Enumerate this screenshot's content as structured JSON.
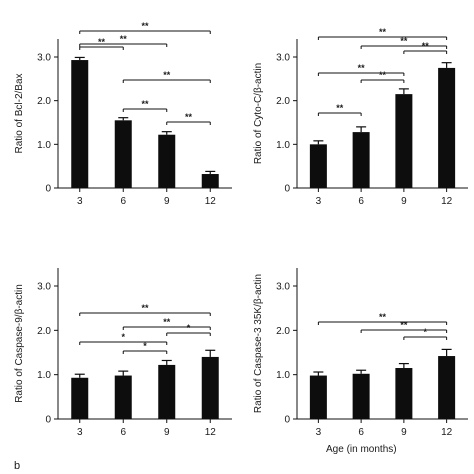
{
  "figure": {
    "panel_label": "b",
    "xlabel": "Age (in months)"
  },
  "chart_data": [
    {
      "type": "bar",
      "categories": [
        "3",
        "6",
        "9",
        "12"
      ],
      "values": [
        2.93,
        1.55,
        1.22,
        0.32
      ],
      "errors": [
        0.06,
        0.06,
        0.07,
        0.06
      ],
      "ylabel": "Ratio of Bcl-2/Bax",
      "ylim": [
        0,
        3.0
      ],
      "yticks": [
        "0",
        "1.0",
        "2.0",
        "3.0"
      ],
      "significance": [
        {
          "from": 0,
          "to": 3,
          "label": "**"
        },
        {
          "from": 0,
          "to": 2,
          "label": "**"
        },
        {
          "from": 0,
          "to": 1,
          "label": "**"
        },
        {
          "from": 1,
          "to": 3,
          "label": "**"
        },
        {
          "from": 1,
          "to": 2,
          "label": "**"
        },
        {
          "from": 2,
          "to": 3,
          "label": "**"
        }
      ]
    },
    {
      "type": "bar",
      "categories": [
        "3",
        "6",
        "9",
        "12"
      ],
      "values": [
        1.0,
        1.28,
        2.15,
        2.75
      ],
      "errors": [
        0.08,
        0.12,
        0.12,
        0.12
      ],
      "ylabel": "Ratio of Cyto-C/β-actin",
      "ylim": [
        0,
        3.0
      ],
      "yticks": [
        "0",
        "1.0",
        "2.0",
        "3.0"
      ],
      "significance": [
        {
          "from": 0,
          "to": 3,
          "label": "**"
        },
        {
          "from": 1,
          "to": 3,
          "label": "**"
        },
        {
          "from": 2,
          "to": 3,
          "label": "**"
        },
        {
          "from": 0,
          "to": 2,
          "label": "**"
        },
        {
          "from": 1,
          "to": 2,
          "label": "**"
        },
        {
          "from": 0,
          "to": 1,
          "label": "**"
        }
      ]
    },
    {
      "type": "bar",
      "categories": [
        "3",
        "6",
        "9",
        "12"
      ],
      "values": [
        0.93,
        0.98,
        1.22,
        1.4
      ],
      "errors": [
        0.08,
        0.1,
        0.1,
        0.15
      ],
      "ylabel": "Ratio of Caspase-9/β-actin",
      "ylim": [
        0,
        3.0
      ],
      "yticks": [
        "0",
        "1.0",
        "2.0",
        "3.0"
      ],
      "significance": [
        {
          "from": 0,
          "to": 3,
          "label": "**"
        },
        {
          "from": 1,
          "to": 3,
          "label": "**"
        },
        {
          "from": 2,
          "to": 3,
          "label": "*"
        },
        {
          "from": 0,
          "to": 2,
          "label": "*"
        },
        {
          "from": 1,
          "to": 2,
          "label": "*"
        }
      ]
    },
    {
      "type": "bar",
      "categories": [
        "3",
        "6",
        "9",
        "12"
      ],
      "values": [
        0.98,
        1.02,
        1.15,
        1.42
      ],
      "errors": [
        0.08,
        0.08,
        0.1,
        0.15
      ],
      "ylabel": "Ratio of Caspase-3 35K/β-actin",
      "ylim": [
        0,
        3.0
      ],
      "yticks": [
        "0",
        "1.0",
        "2.0",
        "3.0"
      ],
      "significance": [
        {
          "from": 0,
          "to": 3,
          "label": "**"
        },
        {
          "from": 1,
          "to": 3,
          "label": "**"
        },
        {
          "from": 2,
          "to": 3,
          "label": "*"
        }
      ]
    }
  ]
}
